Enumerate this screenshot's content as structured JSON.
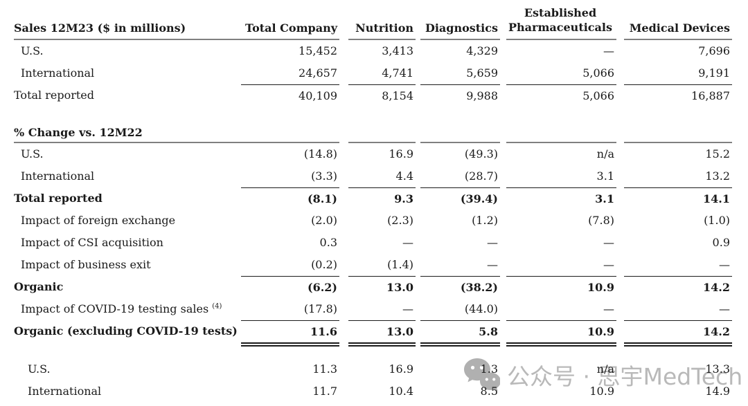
{
  "header": {
    "row_label": "Sales 12M23 ($ in millions)",
    "columns": [
      "Total Company",
      "Nutrition",
      "Diagnostics",
      "Established\nPharmaceuticals",
      "Medical Devices"
    ]
  },
  "rows": [
    {
      "type": "data",
      "label": "U.S.",
      "indent": 1,
      "values": [
        "15,452",
        "3,413",
        "4,329",
        "—",
        "7,696"
      ]
    },
    {
      "type": "data",
      "label": "International",
      "indent": 1,
      "values": [
        "24,657",
        "4,741",
        "5,659",
        "5,066",
        "9,191"
      ]
    },
    {
      "type": "data",
      "label": "Total reported",
      "indent": 0,
      "rule_top": "black",
      "values": [
        "40,109",
        "8,154",
        "9,988",
        "5,066",
        "16,887"
      ]
    },
    {
      "type": "spacer",
      "size": "large"
    },
    {
      "type": "section",
      "label": "% Change vs. 12M22"
    },
    {
      "type": "data",
      "label": "U.S.",
      "indent": 1,
      "values": [
        "(14.8)",
        "16.9",
        "(49.3)",
        "n/a",
        "15.2"
      ]
    },
    {
      "type": "data",
      "label": "International",
      "indent": 1,
      "values": [
        "(3.3)",
        "4.4",
        "(28.7)",
        "3.1",
        "13.2"
      ]
    },
    {
      "type": "data",
      "label": "Total reported",
      "indent": 0,
      "bold": true,
      "rule_top": "black",
      "values": [
        "(8.1)",
        "9.3",
        "(39.4)",
        "3.1",
        "14.1"
      ]
    },
    {
      "type": "data",
      "label": "Impact of foreign exchange",
      "indent": 1,
      "values": [
        "(2.0)",
        "(2.3)",
        "(1.2)",
        "(7.8)",
        "(1.0)"
      ]
    },
    {
      "type": "data",
      "label": "Impact of CSI acquisition",
      "indent": 1,
      "values": [
        "0.3",
        "—",
        "—",
        "—",
        "0.9"
      ]
    },
    {
      "type": "data",
      "label": "Impact of business exit",
      "indent": 1,
      "values": [
        "(0.2)",
        "(1.4)",
        "—",
        "—",
        "—"
      ]
    },
    {
      "type": "data",
      "label": "Organic",
      "indent": 0,
      "bold": true,
      "rule_top": "black",
      "values": [
        "(6.2)",
        "13.0",
        "(38.2)",
        "10.9",
        "14.2"
      ]
    },
    {
      "type": "data",
      "label": "Impact of COVID-19 testing sales",
      "sup": "(4)",
      "indent": 1,
      "values": [
        "(17.8)",
        "—",
        "(44.0)",
        "—",
        "—"
      ]
    },
    {
      "type": "data",
      "label": "Organic (excluding COVID-19 tests)",
      "indent": 0,
      "bold": true,
      "rule_top": "black",
      "values": [
        "11.6",
        "13.0",
        "5.8",
        "10.9",
        "14.2"
      ]
    },
    {
      "type": "double-rule"
    },
    {
      "type": "spacer",
      "size": "small"
    },
    {
      "type": "data",
      "label": "U.S.",
      "indent": 2,
      "values": [
        "11.3",
        "16.9",
        "1.3",
        "n/a",
        "13.3"
      ]
    },
    {
      "type": "data",
      "label": "International",
      "indent": 2,
      "values": [
        "11.7",
        "10.4",
        "8.5",
        "10.9",
        "14.9"
      ]
    }
  ],
  "watermark": {
    "text": "公众号 · 思宇MedTech"
  },
  "colors": {
    "text": "#1a1a1a",
    "rule_gray": "#808080",
    "rule_black": "#1a1a1a",
    "watermark_gray": "#b9b9b9"
  }
}
